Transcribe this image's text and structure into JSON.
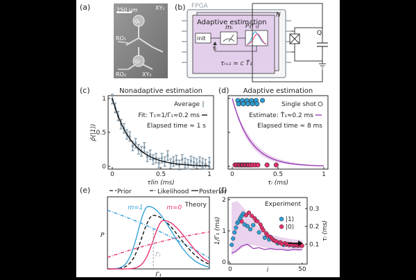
{
  "panel_a": {
    "label": "(a)",
    "scalebar": "250 μm",
    "labels": [
      "XY₁",
      "Q₁",
      "RO₁",
      "Q₂",
      "RO₂",
      "XY₂"
    ]
  },
  "panel_b": {
    "label": "(b)",
    "fpga": "FPGA",
    "title": "Adaptive estimation",
    "n_label": "N",
    "init": "init",
    "m_label": "mᵢ",
    "tau_label": "τᵢ",
    "posterior_label": "Pᵢ(Γ₁)",
    "update_rule": "τᵢ₊₁ = c T̂₁",
    "qubit_label": "Qⱼ"
  },
  "chart_data": [
    {
      "panel": "(c)",
      "type": "scatter",
      "title": "Nonadaptive estimation",
      "xlabel": "τlin (ms)",
      "ylabel": "p̂(|1⟩)",
      "xlim": [
        0,
        1
      ],
      "ylim": [
        0,
        1
      ],
      "xticks": [
        "0",
        "0.5",
        "1"
      ],
      "yticks": [
        "0",
        "0.5",
        "1"
      ],
      "legend": [
        "Average"
      ],
      "annotations": [
        "Fit: T₁=1/Γ₁≈0.2 ms",
        "Elapsed time ≈ 1 s"
      ],
      "series": [
        {
          "name": "Average",
          "x": [
            0.0,
            0.03,
            0.06,
            0.09,
            0.12,
            0.15,
            0.18,
            0.21,
            0.24,
            0.27,
            0.3,
            0.33,
            0.36,
            0.39,
            0.42,
            0.45,
            0.48,
            0.51,
            0.54,
            0.57,
            0.6,
            0.63,
            0.66,
            0.69,
            0.72,
            0.75,
            0.78,
            0.81,
            0.84,
            0.87,
            0.9,
            0.93,
            0.96,
            1.0
          ],
          "y": [
            0.99,
            0.86,
            0.74,
            0.62,
            0.56,
            0.47,
            0.44,
            0.3,
            0.34,
            0.25,
            0.22,
            0.28,
            0.14,
            0.17,
            0.1,
            0.12,
            0.05,
            0.12,
            0.07,
            0.16,
            0.04,
            0.07,
            0.09,
            0.02,
            0.1,
            0.05,
            0.03,
            0.08,
            0.06,
            0.04,
            0.07,
            0.05,
            0.03,
            0.06
          ],
          "err": 0.07
        },
        {
          "name": "Fit",
          "T1": 0.2
        }
      ]
    },
    {
      "panel": "(d)",
      "type": "scatter",
      "title": "Adaptive estimation",
      "xlabel": "τᵢ (ms)",
      "xlim": [
        0,
        1
      ],
      "ylim": [
        0,
        1
      ],
      "xticks": [
        "0",
        "0.5",
        "1"
      ],
      "legend": [
        "Single shot"
      ],
      "annotations": [
        "Estimate: T̂₁≈0.2 ms",
        "Elapsed time ≈ 8 ms"
      ],
      "series": [
        {
          "name": "Single shot |1⟩",
          "x": [
            0.06,
            0.11,
            0.16,
            0.21,
            0.26,
            0.33,
            0.07,
            0.12,
            0.17,
            0.22,
            0.27
          ],
          "y": [
            0.97,
            0.97,
            0.97,
            0.97,
            0.97,
            0.97,
            0.92,
            0.92,
            0.92,
            0.92,
            0.92
          ]
        },
        {
          "name": "Single shot |0⟩",
          "x": [
            0.03,
            0.05,
            0.07,
            0.08,
            0.1,
            0.11,
            0.12,
            0.14,
            0.15,
            0.17,
            0.18,
            0.2,
            0.22,
            0.25,
            0.28,
            0.38,
            0.48
          ],
          "y": [
            0.02,
            0.02,
            0.02,
            0.02,
            0.02,
            0.02,
            0.02,
            0.02,
            0.02,
            0.02,
            0.02,
            0.02,
            0.02,
            0.02,
            0.02,
            0.02,
            0.02
          ]
        },
        {
          "name": "Estimate",
          "T1": 0.2
        }
      ]
    },
    {
      "panel": "(e)",
      "type": "line",
      "title": "Theory",
      "xlabel": "Γ₁",
      "ylabel": "P",
      "legend": [
        "Prior",
        "Likelihood",
        "Posterior"
      ],
      "annotations": [
        "m=1",
        "m=0",
        "Γ̂₁"
      ],
      "series": [
        {
          "name": "Prior",
          "style": "dashed",
          "color": "#111111"
        },
        {
          "name": "Likelihood m=1",
          "style": "dashdot",
          "color": "#2fa0d8"
        },
        {
          "name": "Likelihood m=0",
          "style": "dashdot",
          "color": "#e8336d"
        },
        {
          "name": "Posterior m=1",
          "style": "solid",
          "color": "#2fa0d8"
        },
        {
          "name": "Posterior m=0",
          "style": "solid",
          "color": "#e8336d"
        }
      ]
    },
    {
      "panel": "(f)",
      "type": "scatter",
      "title": "Experiment",
      "xlabel": "i",
      "ylabel": "1/Γ₁ (ms)",
      "y2label": "τᵢ (ms)",
      "xlim": [
        0,
        52
      ],
      "ylim": [
        0,
        2
      ],
      "y2lim": [
        0,
        0.35
      ],
      "xticks": [
        "0",
        "50"
      ],
      "yticks": [
        "0",
        "1",
        "2"
      ],
      "y2ticks": [
        "0.1",
        "0.2",
        "0.3"
      ],
      "legend": [
        "|1⟩",
        "|0⟩"
      ],
      "series": [
        {
          "name": "|1⟩",
          "x": [
            1,
            2,
            3,
            4,
            5,
            6,
            7,
            8,
            9,
            10,
            12,
            14,
            16,
            20,
            24,
            27,
            33,
            37,
            44
          ],
          "y": [
            0.55,
            0.75,
            0.95,
            1.1,
            1.25,
            1.3,
            1.4,
            1.48,
            1.55,
            1.2,
            1.15,
            1.05,
            1.18,
            0.95,
            0.78,
            0.72,
            0.6,
            0.55,
            0.52
          ]
        },
        {
          "name": "|0⟩",
          "x": [
            8,
            11,
            13,
            15,
            17,
            18,
            19,
            21,
            22,
            23,
            25,
            26,
            28,
            29,
            30,
            31,
            32,
            34,
            35,
            36,
            38,
            39,
            40,
            41,
            42,
            43,
            45,
            46,
            47,
            48,
            49,
            50
          ],
          "y": [
            1.3,
            1.5,
            1.58,
            1.48,
            1.4,
            1.32,
            1.3,
            1.2,
            1.1,
            1.02,
            0.92,
            0.85,
            0.8,
            0.75,
            0.7,
            0.68,
            0.66,
            0.62,
            0.63,
            0.58,
            0.6,
            0.56,
            0.58,
            0.54,
            0.57,
            0.55,
            0.53,
            0.55,
            0.52,
            0.54,
            0.53,
            0.52
          ]
        },
        {
          "name": "τᵢ",
          "x": [
            1,
            4,
            8,
            12,
            16,
            20,
            24,
            28,
            32,
            36,
            40,
            44,
            48,
            50
          ],
          "y": [
            0.05,
            0.06,
            0.09,
            0.1,
            0.075,
            0.08,
            0.07,
            0.075,
            0.07,
            0.07,
            0.065,
            0.07,
            0.068,
            0.07
          ]
        }
      ]
    }
  ],
  "colors": {
    "magenta": "#e8336d",
    "blue": "#2fa0d8",
    "purple": "#9b3fb5",
    "purpleFill": "#ead3ee",
    "errbar": "#7f97a8"
  }
}
